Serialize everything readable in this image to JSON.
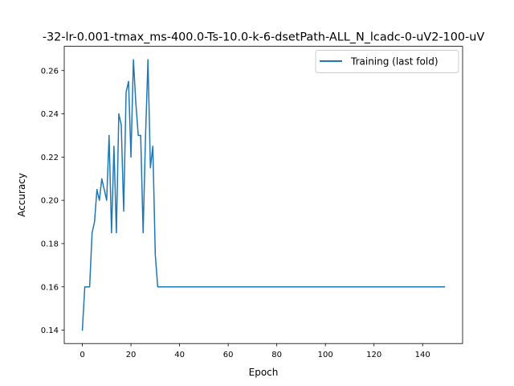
{
  "chart_data": {
    "type": "line",
    "title": "-32-lr-0.001-tmax_ms-400.0-Ts-10.0-k-6-dsetPath-ALL_N_lcadc-0-uV2-100-uV",
    "xlabel": "Epoch",
    "ylabel": "Accuracy",
    "xlim": [
      -7.45,
      156.45
    ],
    "ylim": [
      0.1338,
      0.2712
    ],
    "xticks": [
      0,
      20,
      40,
      60,
      80,
      100,
      120,
      140
    ],
    "xtick_labels": [
      "0",
      "20",
      "40",
      "60",
      "80",
      "100",
      "120",
      "140"
    ],
    "yticks": [
      0.14,
      0.16,
      0.18,
      0.2,
      0.22,
      0.24,
      0.26
    ],
    "ytick_labels": [
      "0.14",
      "0.16",
      "0.18",
      "0.20",
      "0.22",
      "0.24",
      "0.26"
    ],
    "grid": false,
    "legend_position": "upper right",
    "series": [
      {
        "name": "Training (last fold)",
        "color": "#1f77b4",
        "x": [
          0,
          1,
          2,
          3,
          4,
          5,
          6,
          7,
          8,
          9,
          10,
          11,
          12,
          13,
          14,
          15,
          16,
          17,
          18,
          19,
          20,
          21,
          22,
          23,
          24,
          25,
          26,
          27,
          28,
          29,
          30,
          31,
          149
        ],
        "y": [
          0.14,
          0.16,
          0.16,
          0.16,
          0.185,
          0.19,
          0.205,
          0.2,
          0.21,
          0.205,
          0.2,
          0.23,
          0.185,
          0.225,
          0.185,
          0.24,
          0.235,
          0.195,
          0.25,
          0.255,
          0.22,
          0.265,
          0.245,
          0.23,
          0.23,
          0.185,
          0.23,
          0.265,
          0.215,
          0.225,
          0.175,
          0.16,
          0.16
        ]
      }
    ]
  }
}
